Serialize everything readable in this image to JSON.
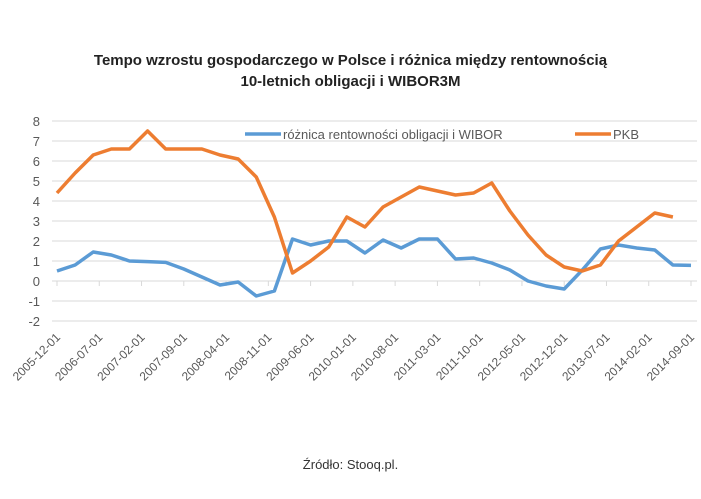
{
  "chart_data": {
    "type": "line",
    "title_line1": "Tempo wzrostu gospodarczego  w Polsce i różnica między rentownością",
    "title_line2": "10-letnich  obligacji  i WIBOR3M",
    "xlabel": "",
    "ylabel": "",
    "ylim": [
      -2,
      8
    ],
    "yticks": [
      "-2",
      "-1",
      "0",
      "1",
      "2",
      "3",
      "4",
      "5",
      "6",
      "7",
      "8"
    ],
    "xtick_labels": [
      "2005-12-01",
      "2006-07-01",
      "2007-02-01",
      "2007-09-01",
      "2008-04-01",
      "2008-11-01",
      "2009-06-01",
      "2010-01-01",
      "2010-08-01",
      "2011-03-01",
      "2011-10-01",
      "2012-05-01",
      "2012-12-01",
      "2013-07-01",
      "2014-02-01",
      "2014-09-01"
    ],
    "grid": true,
    "legend_position": "top",
    "series": [
      {
        "name": "różnica rentowności obligacji i WIBOR",
        "color": "#5B9BD5",
        "values": [
          0.5,
          0.8,
          1.45,
          1.3,
          1.0,
          0.97,
          0.93,
          0.6,
          0.2,
          -0.2,
          -0.05,
          -0.75,
          -0.5,
          2.1,
          1.8,
          2.0,
          2.0,
          1.4,
          2.05,
          1.65,
          2.1,
          2.1,
          1.1,
          1.15,
          0.9,
          0.55,
          0.0,
          -0.25,
          -0.4,
          0.55,
          1.6,
          1.8,
          1.65,
          1.55,
          0.8,
          0.78
        ]
      },
      {
        "name": "PKB",
        "color": "#ED7D31",
        "values": [
          4.4,
          5.4,
          6.3,
          6.6,
          6.6,
          7.5,
          6.6,
          6.6,
          6.6,
          6.3,
          6.1,
          5.2,
          3.2,
          0.4,
          1.0,
          1.7,
          3.2,
          2.7,
          3.7,
          4.2,
          4.7,
          4.5,
          4.3,
          4.4,
          4.9,
          3.5,
          2.3,
          1.3,
          0.7,
          0.5,
          0.8,
          2.0,
          2.7,
          3.4,
          3.2
        ]
      }
    ],
    "n_points": 36
  },
  "source": "Źródło: Stooq.pl."
}
